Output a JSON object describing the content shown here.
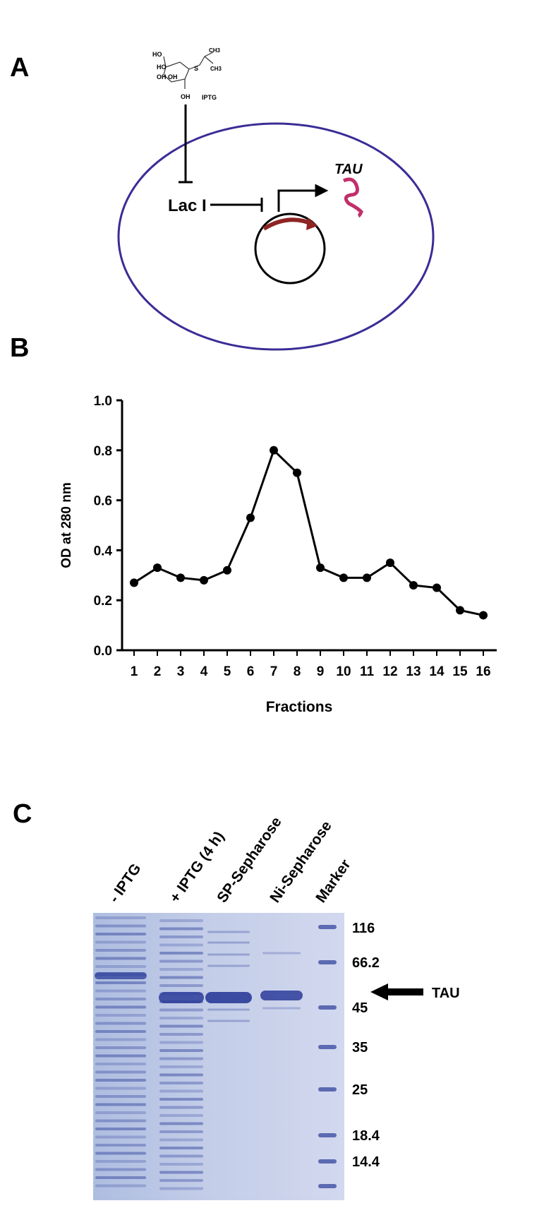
{
  "panels": {
    "A": {
      "letter": "A",
      "molecule": [
        "HO",
        "HO",
        "OH",
        "OH",
        "S",
        "CH3",
        "CH3",
        "OH",
        "IPTG"
      ],
      "repressor": "Lac I",
      "product": "TAU"
    },
    "B": {
      "letter": "B"
    },
    "C": {
      "letter": "C",
      "lanes": [
        "- IPTG",
        "+ IPTG (4 h)",
        "SP-Sepharose",
        "Ni-Sepharose",
        "Marker"
      ],
      "markers": [
        116,
        66.2,
        45,
        35,
        25,
        18.4,
        14.4
      ],
      "arrow_label": "TAU"
    }
  },
  "chart_data": {
    "type": "line",
    "y_label": "OD at 280 nm",
    "x_label": "Fractions",
    "categories": [
      "1",
      "2",
      "3",
      "4",
      "5",
      "6",
      "7",
      "8",
      "9",
      "10",
      "11",
      "12",
      "13",
      "14",
      "15",
      "16"
    ],
    "values": [
      0.27,
      0.33,
      0.29,
      0.28,
      0.32,
      0.53,
      0.8,
      0.71,
      0.33,
      0.29,
      0.29,
      0.35,
      0.26,
      0.25,
      0.16,
      0.14
    ],
    "color": "#000000",
    "ylim": [
      0,
      1
    ],
    "yticks": [
      {
        "value": 0,
        "label": "0.0"
      },
      0.2,
      0.4,
      0.6,
      0.8,
      {
        "value": 1,
        "label": "1.0"
      }
    ]
  }
}
